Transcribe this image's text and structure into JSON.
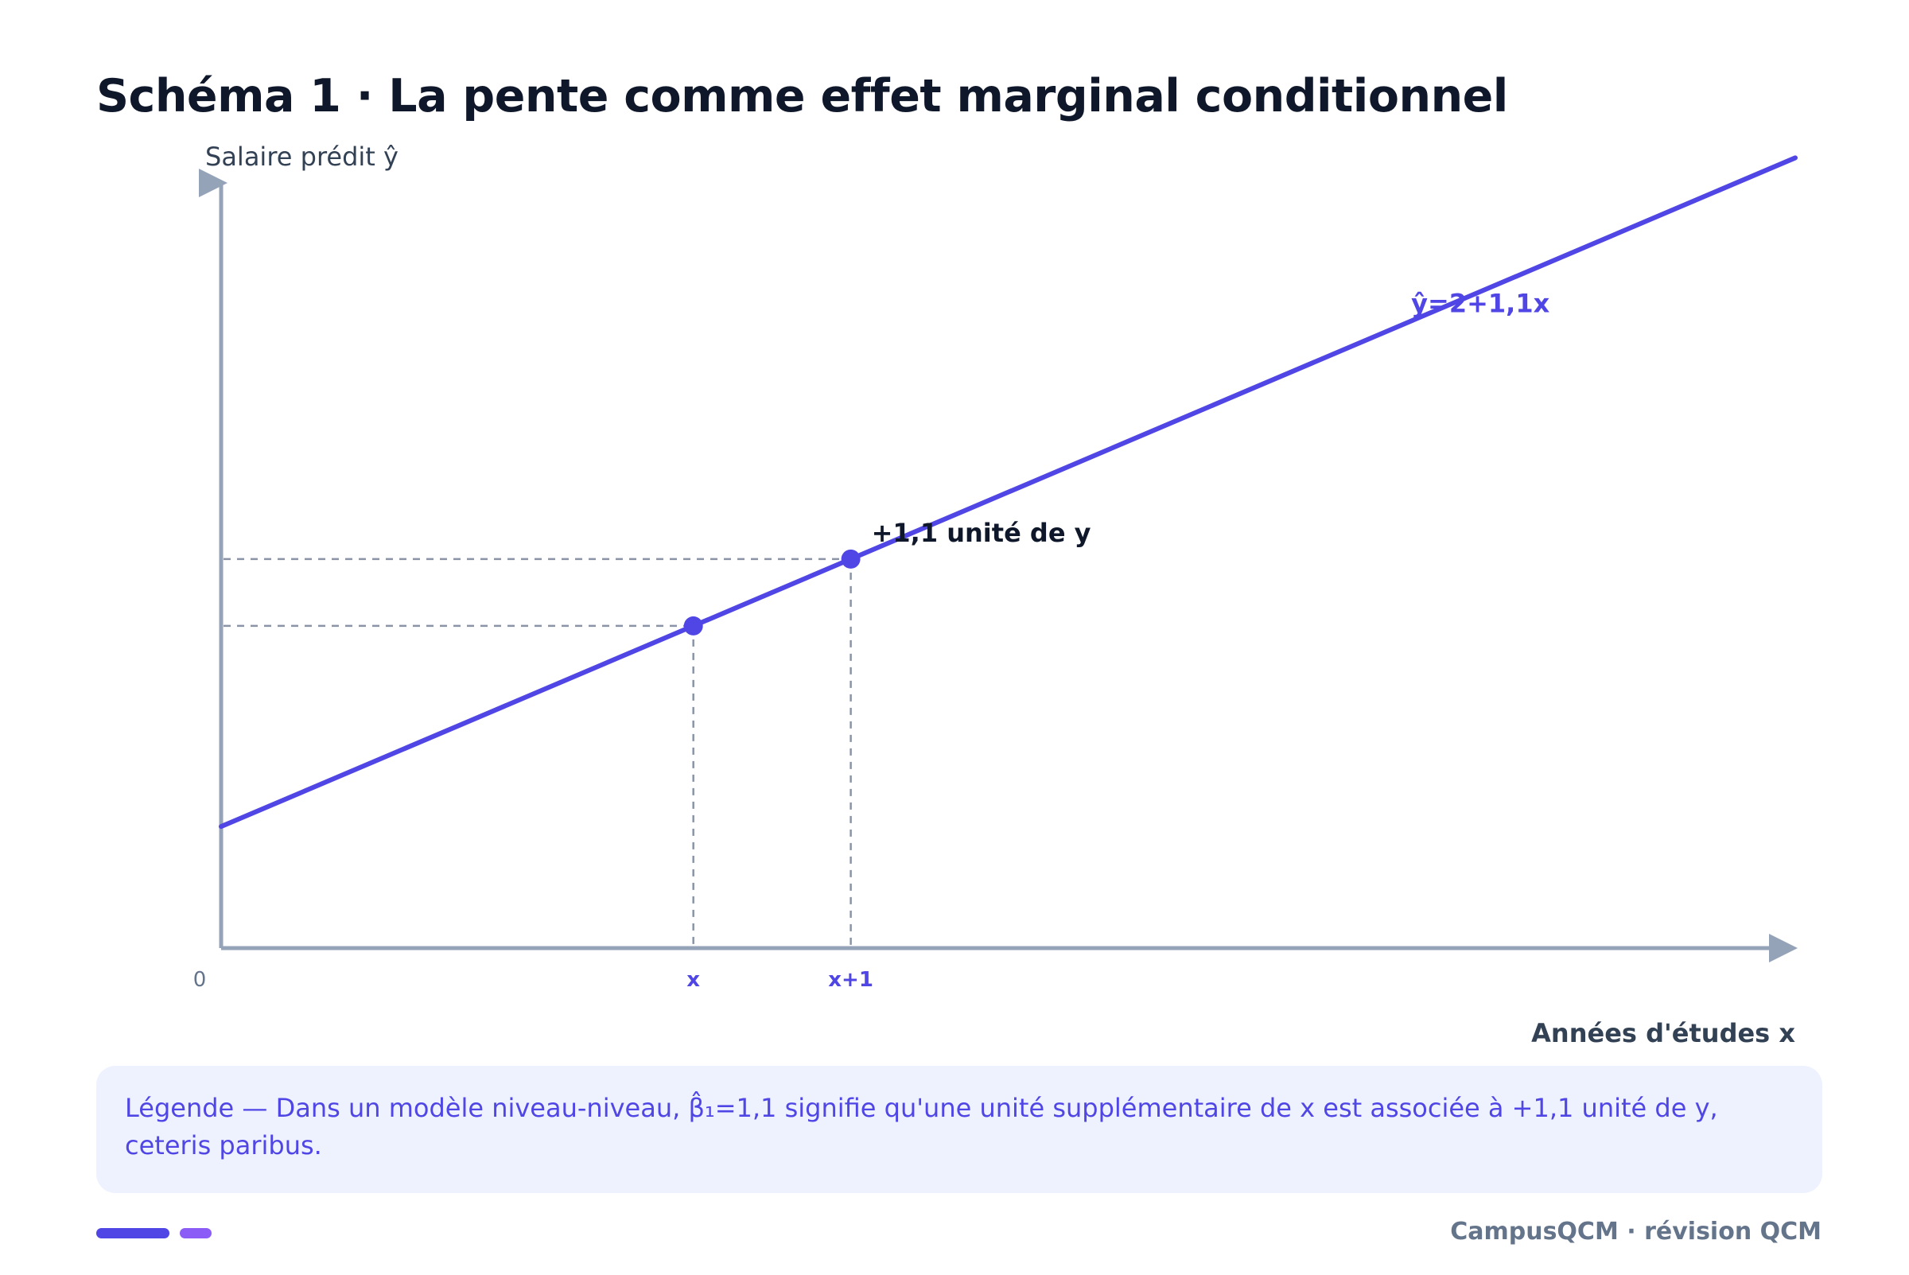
{
  "title": "Schéma 1 · La pente comme effet marginal conditionnel",
  "colors": {
    "accent": "#4f46e5",
    "accent_secondary": "#8b5cf6",
    "axis": "#94a3b8",
    "guide": "#8a94a6",
    "text_dark": "#0f172a",
    "legend_bg": "#eef2ff"
  },
  "chart_data": {
    "type": "line",
    "ylabel": "Salaire prédit ŷ",
    "xlabel": "Années d'études x",
    "origin_label": "0",
    "xlim": [
      0,
      10
    ],
    "ylim": [
      0,
      12.6
    ],
    "series": [
      {
        "name": "ŷ=2+1,1x",
        "intercept": 2,
        "slope": 1.1,
        "x": [
          0,
          10
        ],
        "y": [
          2,
          13
        ]
      }
    ],
    "points": [
      {
        "label": "x",
        "x": 3,
        "y": 5.3
      },
      {
        "label": "x+1",
        "x": 4,
        "y": 6.4
      }
    ],
    "annotation": "+1,1 unité de y",
    "grid": false,
    "legend": "none"
  },
  "legend": {
    "line1": "Légende — Dans un modèle niveau-niveau, β̂₁=1,1 signifie qu'une unité supplémentaire de x est associée à +1,1 unité de y,",
    "line2": "ceteris paribus."
  },
  "footer": {
    "brand": "CampusQCM · révision QCM"
  }
}
